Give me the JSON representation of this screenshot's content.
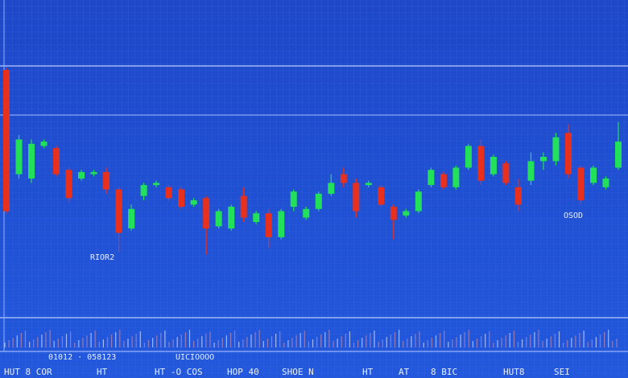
{
  "chart_data": {
    "type": "candlestick",
    "open": [
      90,
      42,
      40,
      55,
      54,
      44,
      40,
      42,
      43,
      35,
      17,
      32,
      37,
      36,
      35,
      28,
      31,
      18,
      17,
      32,
      20,
      24,
      13,
      27,
      22,
      26,
      33,
      42,
      38,
      37,
      36,
      27,
      23,
      25,
      37,
      42,
      36,
      45,
      55,
      42,
      47,
      36,
      39,
      48,
      48,
      61,
      45,
      38,
      36,
      45
    ],
    "high": [
      91,
      60,
      58,
      58,
      55,
      45,
      44,
      44,
      45,
      36,
      28,
      38,
      39,
      37,
      36,
      31,
      32,
      26,
      28,
      36,
      25,
      26,
      26,
      35,
      27,
      34,
      42,
      45,
      40,
      39,
      37,
      28,
      26,
      35,
      45,
      43,
      46,
      56,
      58,
      51,
      48,
      40,
      52,
      52,
      61,
      65,
      46,
      46,
      41,
      66
    ],
    "low": [
      24,
      40,
      38,
      54,
      41,
      29,
      39,
      41,
      33,
      6,
      16,
      30,
      36,
      30,
      26,
      27,
      5,
      17,
      16,
      20,
      19,
      8,
      12,
      25,
      21,
      25,
      32,
      36,
      22,
      36,
      27,
      12,
      22,
      24,
      36,
      35,
      35,
      44,
      37,
      41,
      37,
      25,
      37,
      44,
      46,
      40,
      28,
      37,
      35,
      44
    ],
    "close": [
      25,
      58,
      56,
      57,
      42,
      31,
      43,
      43,
      35,
      15,
      26,
      37,
      38,
      31,
      27,
      30,
      17,
      25,
      27,
      22,
      24,
      13,
      25,
      34,
      26,
      33,
      38,
      38,
      25,
      38,
      28,
      21,
      25,
      34,
      44,
      36,
      45,
      55,
      39,
      50,
      38,
      28,
      48,
      50,
      59,
      42,
      30,
      45,
      40,
      57
    ],
    "up_color": "#22e05a",
    "down_color": "#e8301e",
    "ylim": [
      0,
      100
    ],
    "annotations": [
      "RIOR2",
      "OSOD",
      "01012 · 058123",
      "UICIOOOO"
    ],
    "footer_labels": [
      "HUT 8 COR",
      "HT",
      "HT -O COS",
      "HOP 40",
      "SHOE N",
      "HT",
      "AT",
      "8 BIC",
      "HUT8",
      "SEI"
    ]
  }
}
